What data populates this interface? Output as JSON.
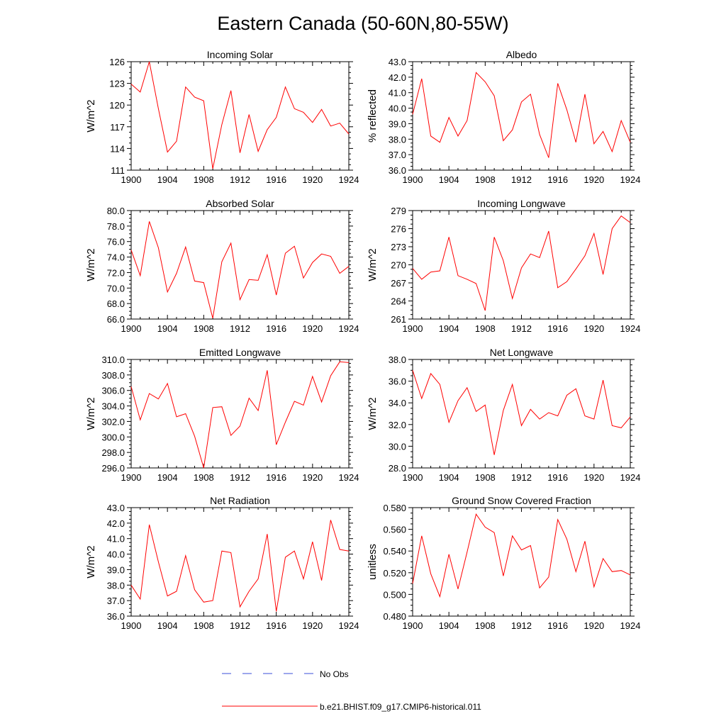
{
  "figure": {
    "title": "Eastern Canada (50-60N,80-55W)"
  },
  "legend": {
    "no_obs_label": "No Obs",
    "model_label": "b.e21.BHIST.f09_g17.CMIP6-historical.011",
    "no_obs_color": "#3b4fd8",
    "model_color": "#ff0000"
  },
  "chart_data": [
    {
      "type": "line",
      "title": "Incoming Solar",
      "xlabel": "",
      "ylabel": "W/m^2",
      "xlim": [
        1900,
        1924
      ],
      "ylim": [
        111,
        126
      ],
      "x_ticks": [
        "1900",
        "1904",
        "1908",
        "1912",
        "1916",
        "1920",
        "1924"
      ],
      "y_ticks": [
        "111",
        "114",
        "117",
        "120",
        "123",
        "126"
      ],
      "series": [
        {
          "name": "b.e21.BHIST.f09_g17.CMIP6-historical.011",
          "color": "#ff0000",
          "x": [
            1900,
            1901,
            1902,
            1903,
            1904,
            1905,
            1906,
            1907,
            1908,
            1909,
            1910,
            1911,
            1912,
            1913,
            1914,
            1915,
            1916,
            1917,
            1918,
            1919,
            1920,
            1921,
            1922,
            1923,
            1924
          ],
          "values": [
            122.9,
            121.8,
            126.0,
            119.5,
            113.5,
            115.0,
            122.5,
            121.1,
            120.6,
            111.2,
            117.3,
            122.0,
            113.4,
            118.7,
            113.6,
            116.6,
            118.3,
            122.5,
            119.5,
            119.0,
            117.6,
            119.4,
            117.1,
            117.5,
            116.0
          ]
        }
      ]
    },
    {
      "type": "line",
      "title": "Albedo",
      "xlabel": "",
      "ylabel": "% reflected",
      "xlim": [
        1900,
        1924
      ],
      "ylim": [
        36.0,
        43.0
      ],
      "x_ticks": [
        "1900",
        "1904",
        "1908",
        "1912",
        "1916",
        "1920",
        "1924"
      ],
      "y_ticks": [
        "36.0",
        "37.0",
        "38.0",
        "39.0",
        "40.0",
        "41.0",
        "42.0",
        "43.0"
      ],
      "series": [
        {
          "name": "b.e21.BHIST.f09_g17.CMIP6-historical.011",
          "color": "#ff0000",
          "x": [
            1900,
            1901,
            1902,
            1903,
            1904,
            1905,
            1906,
            1907,
            1908,
            1909,
            1910,
            1911,
            1912,
            1913,
            1914,
            1915,
            1916,
            1917,
            1918,
            1919,
            1920,
            1921,
            1922,
            1923,
            1924
          ],
          "values": [
            39.6,
            41.9,
            38.2,
            37.8,
            39.4,
            38.2,
            39.2,
            42.3,
            41.7,
            40.8,
            37.9,
            38.6,
            40.4,
            40.9,
            38.3,
            36.8,
            41.6,
            39.9,
            37.8,
            40.9,
            37.7,
            38.5,
            37.2,
            39.2,
            37.8
          ]
        }
      ]
    },
    {
      "type": "line",
      "title": "Absorbed Solar",
      "xlabel": "",
      "ylabel": "W/m^2",
      "xlim": [
        1900,
        1924
      ],
      "ylim": [
        66.0,
        80.0
      ],
      "x_ticks": [
        "1900",
        "1904",
        "1908",
        "1912",
        "1916",
        "1920",
        "1924"
      ],
      "y_ticks": [
        "66.0",
        "68.0",
        "70.0",
        "72.0",
        "74.0",
        "76.0",
        "78.0",
        "80.0"
      ],
      "series": [
        {
          "name": "b.e21.BHIST.f09_g17.CMIP6-historical.011",
          "color": "#ff0000",
          "x": [
            1900,
            1901,
            1902,
            1903,
            1904,
            1905,
            1906,
            1907,
            1908,
            1909,
            1910,
            1911,
            1912,
            1913,
            1914,
            1915,
            1916,
            1917,
            1918,
            1919,
            1920,
            1921,
            1922,
            1923,
            1924
          ],
          "values": [
            74.9,
            71.6,
            78.6,
            75.2,
            69.5,
            71.9,
            75.3,
            70.9,
            70.7,
            66.1,
            73.4,
            75.8,
            68.5,
            71.1,
            71.0,
            74.3,
            69.1,
            74.5,
            75.4,
            71.3,
            73.3,
            74.4,
            74.1,
            71.9,
            72.8
          ]
        }
      ]
    },
    {
      "type": "line",
      "title": "Incoming Longwave",
      "xlabel": "",
      "ylabel": "W/m^2",
      "xlim": [
        1900,
        1924
      ],
      "ylim": [
        261,
        279
      ],
      "x_ticks": [
        "1900",
        "1904",
        "1908",
        "1912",
        "1916",
        "1920",
        "1924"
      ],
      "y_ticks": [
        "261",
        "264",
        "267",
        "270",
        "273",
        "276",
        "279"
      ],
      "series": [
        {
          "name": "b.e21.BHIST.f09_g17.CMIP6-historical.011",
          "color": "#ff0000",
          "x": [
            1900,
            1901,
            1902,
            1903,
            1904,
            1905,
            1906,
            1907,
            1908,
            1909,
            1910,
            1911,
            1912,
            1913,
            1914,
            1915,
            1916,
            1917,
            1918,
            1919,
            1920,
            1921,
            1922,
            1923,
            1924
          ],
          "values": [
            269.4,
            267.6,
            268.8,
            269.0,
            274.6,
            268.2,
            267.6,
            266.9,
            262.4,
            274.6,
            270.7,
            264.4,
            269.5,
            271.8,
            271.2,
            275.6,
            266.2,
            267.2,
            269.3,
            271.5,
            275.2,
            268.4,
            276.0,
            278.1,
            277.0
          ]
        }
      ]
    },
    {
      "type": "line",
      "title": "Emitted Longwave",
      "xlabel": "",
      "ylabel": "W/m^2",
      "xlim": [
        1900,
        1924
      ],
      "ylim": [
        296.0,
        310.0
      ],
      "x_ticks": [
        "1900",
        "1904",
        "1908",
        "1912",
        "1916",
        "1920",
        "1924"
      ],
      "y_ticks": [
        "296.0",
        "298.0",
        "300.0",
        "302.0",
        "304.0",
        "306.0",
        "308.0",
        "310.0"
      ],
      "series": [
        {
          "name": "b.e21.BHIST.f09_g17.CMIP6-historical.011",
          "color": "#ff0000",
          "x": [
            1900,
            1901,
            1902,
            1903,
            1904,
            1905,
            1906,
            1907,
            1908,
            1909,
            1910,
            1911,
            1912,
            1913,
            1914,
            1915,
            1916,
            1917,
            1918,
            1919,
            1920,
            1921,
            1922,
            1923,
            1924
          ],
          "values": [
            306.5,
            302.2,
            305.6,
            304.9,
            306.9,
            302.6,
            303.0,
            300.1,
            296.0,
            303.8,
            303.9,
            300.2,
            301.4,
            305.0,
            303.4,
            308.6,
            299.0,
            301.9,
            304.6,
            304.1,
            307.8,
            304.5,
            307.9,
            309.7,
            309.6
          ]
        }
      ]
    },
    {
      "type": "line",
      "title": "Net Longwave",
      "xlabel": "",
      "ylabel": "W/m^2",
      "xlim": [
        1900,
        1924
      ],
      "ylim": [
        28.0,
        38.0
      ],
      "x_ticks": [
        "1900",
        "1904",
        "1908",
        "1912",
        "1916",
        "1920",
        "1924"
      ],
      "y_ticks": [
        "28.0",
        "30.0",
        "32.0",
        "34.0",
        "36.0",
        "38.0"
      ],
      "series": [
        {
          "name": "b.e21.BHIST.f09_g17.CMIP6-historical.011",
          "color": "#ff0000",
          "x": [
            1900,
            1901,
            1902,
            1903,
            1904,
            1905,
            1906,
            1907,
            1908,
            1909,
            1910,
            1911,
            1912,
            1913,
            1914,
            1915,
            1916,
            1917,
            1918,
            1919,
            1920,
            1921,
            1922,
            1923,
            1924
          ],
          "values": [
            37.0,
            34.4,
            36.7,
            35.7,
            32.2,
            34.2,
            35.4,
            33.2,
            33.8,
            29.2,
            33.3,
            35.7,
            31.9,
            33.4,
            32.5,
            33.1,
            32.8,
            34.7,
            35.3,
            32.8,
            32.5,
            36.1,
            31.9,
            31.7,
            32.7
          ]
        }
      ]
    },
    {
      "type": "line",
      "title": "Net Radiation",
      "xlabel": "",
      "ylabel": "W/m^2",
      "xlim": [
        1900,
        1924
      ],
      "ylim": [
        36.0,
        43.0
      ],
      "x_ticks": [
        "1900",
        "1904",
        "1908",
        "1912",
        "1916",
        "1920",
        "1924"
      ],
      "y_ticks": [
        "36.0",
        "37.0",
        "38.0",
        "39.0",
        "40.0",
        "41.0",
        "42.0",
        "43.0"
      ],
      "series": [
        {
          "name": "b.e21.BHIST.f09_g17.CMIP6-historical.011",
          "color": "#ff0000",
          "x": [
            1900,
            1901,
            1902,
            1903,
            1904,
            1905,
            1906,
            1907,
            1908,
            1909,
            1910,
            1911,
            1912,
            1913,
            1914,
            1915,
            1916,
            1917,
            1918,
            1919,
            1920,
            1921,
            1922,
            1923,
            1924
          ],
          "values": [
            38.0,
            37.1,
            41.9,
            39.5,
            37.3,
            37.6,
            39.9,
            37.7,
            36.9,
            37.0,
            40.2,
            40.1,
            36.6,
            37.6,
            38.4,
            41.3,
            36.3,
            39.8,
            40.2,
            38.4,
            40.8,
            38.3,
            42.2,
            40.3,
            40.2
          ]
        }
      ]
    },
    {
      "type": "line",
      "title": "Ground Snow Covered Fraction",
      "xlabel": "",
      "ylabel": "unitless",
      "xlim": [
        1900,
        1924
      ],
      "ylim": [
        0.48,
        0.58
      ],
      "x_ticks": [
        "1900",
        "1904",
        "1908",
        "1912",
        "1916",
        "1920",
        "1924"
      ],
      "y_ticks": [
        "0.480",
        "0.500",
        "0.520",
        "0.540",
        "0.560",
        "0.580"
      ],
      "series": [
        {
          "name": "b.e21.BHIST.f09_g17.CMIP6-historical.011",
          "color": "#ff0000",
          "x": [
            1900,
            1901,
            1902,
            1903,
            1904,
            1905,
            1906,
            1907,
            1908,
            1909,
            1910,
            1911,
            1912,
            1913,
            1914,
            1915,
            1916,
            1917,
            1918,
            1919,
            1920,
            1921,
            1922,
            1923,
            1924
          ],
          "values": [
            0.51,
            0.554,
            0.519,
            0.498,
            0.537,
            0.505,
            0.539,
            0.574,
            0.562,
            0.557,
            0.517,
            0.554,
            0.541,
            0.545,
            0.506,
            0.516,
            0.569,
            0.551,
            0.521,
            0.549,
            0.507,
            0.533,
            0.521,
            0.522,
            0.518
          ]
        }
      ]
    }
  ]
}
